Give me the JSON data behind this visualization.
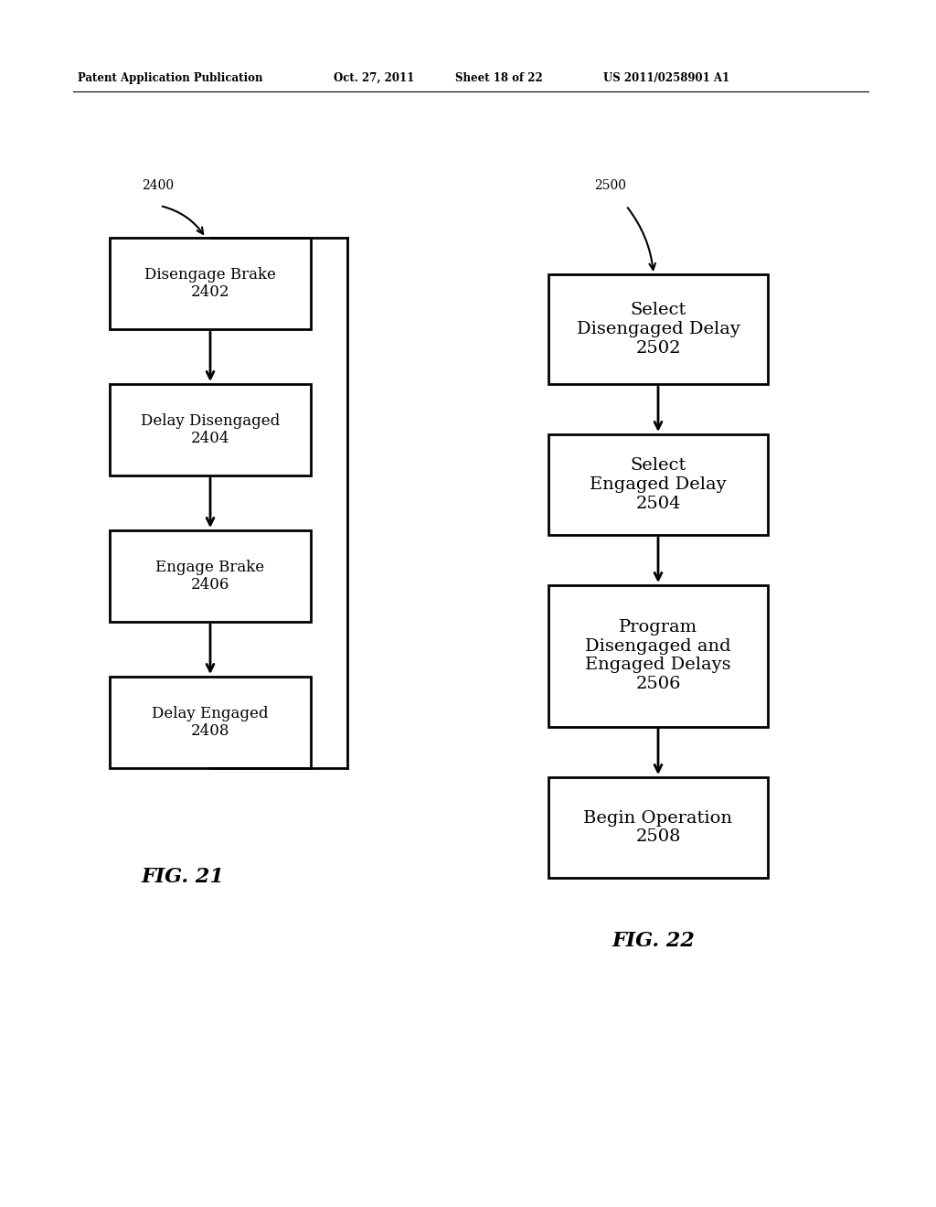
{
  "bg_color": "#ffffff",
  "header_text": "Patent Application Publication",
  "header_date": "Oct. 27, 2011",
  "header_sheet": "Sheet 18 of 22",
  "header_patent": "US 2011/0258901 A1",
  "fig21_label": "2400",
  "fig21_caption": "FIG. 21",
  "fig22_label": "2500",
  "fig22_caption": "FIG. 22",
  "left_boxes": [
    {
      "label": "Disengage Brake\n2402"
    },
    {
      "label": "Delay Disengaged\n2404"
    },
    {
      "label": "Engage Brake\n2406"
    },
    {
      "label": "Delay Engaged\n2408"
    }
  ],
  "right_boxes": [
    {
      "label": "Select\nDisengaged Delay\n2502"
    },
    {
      "label": "Select\nEngaged Delay\n2504"
    },
    {
      "label": "Program\nDisengaged and\nEngaged Delays\n2506"
    },
    {
      "label": "Begin Operation\n2508"
    }
  ]
}
